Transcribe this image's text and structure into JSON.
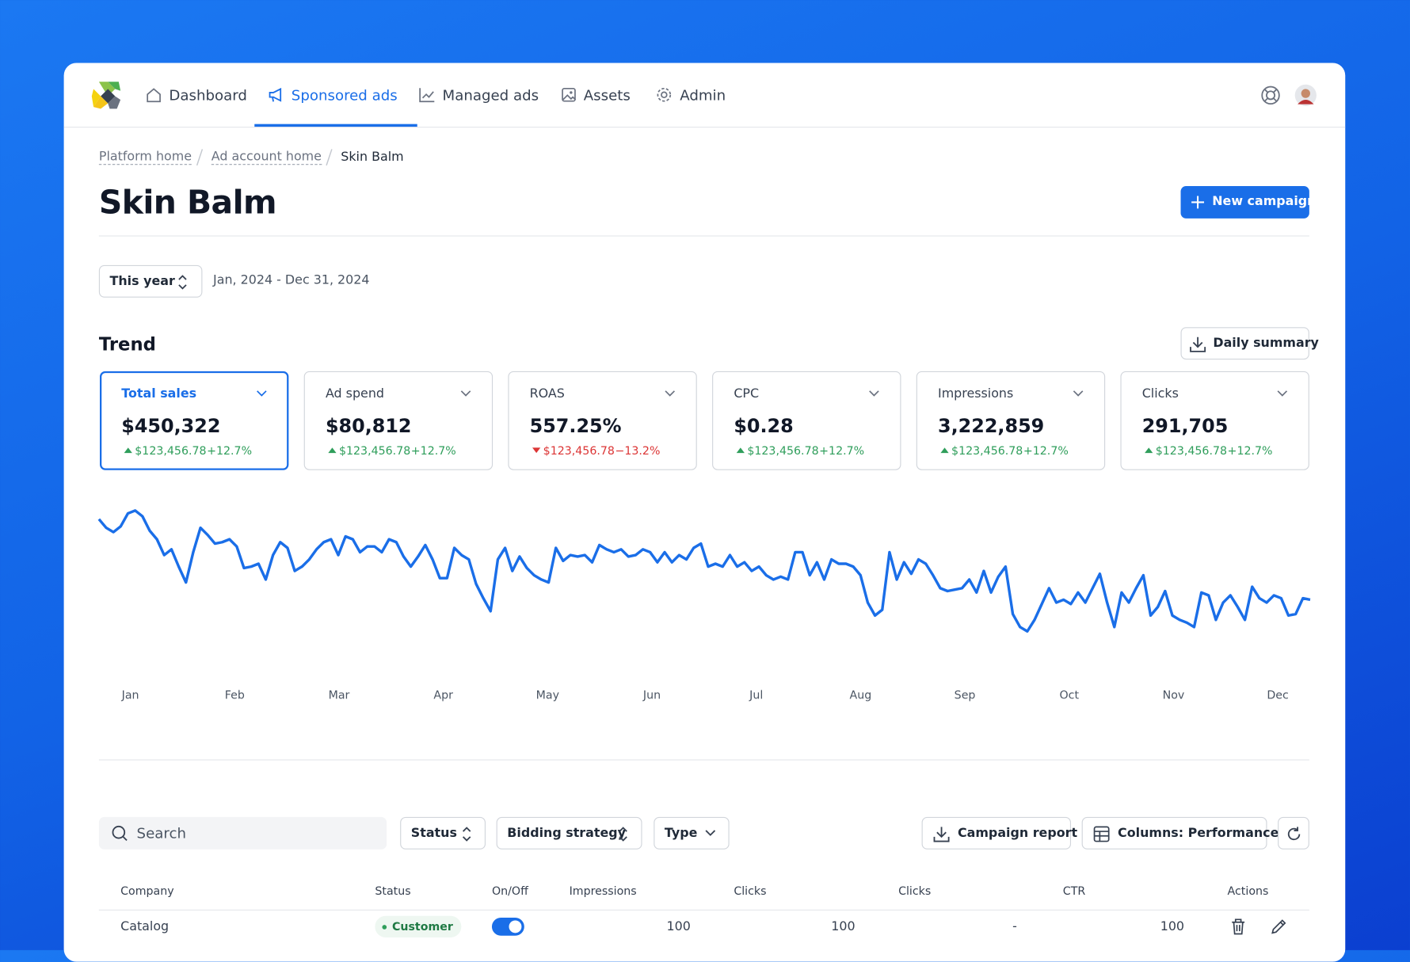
{
  "nav": {
    "items": [
      "Dashboard",
      "Sponsored ads",
      "Managed ads",
      "Assets",
      "Admin"
    ],
    "active": 1
  },
  "breadcrumb": [
    "Platform home",
    "Ad account home",
    "Skin Balm"
  ],
  "header": {
    "title": "Skin Balm",
    "button": "New campaign"
  },
  "date_filter": {
    "range": "This year",
    "dates": "Jan, 2024 - Dec 31, 2024"
  },
  "trend": {
    "title": "Trend",
    "button": "Daily summary",
    "metrics": [
      {
        "label": "Total sales",
        "value": "$450,322",
        "change": "$123,456.78",
        "percent": "+12.7%",
        "direction": "up"
      },
      {
        "label": "Ad spend",
        "value": "$80,812",
        "change": "$123,456.78",
        "percent": "+12.7%",
        "direction": "up"
      },
      {
        "label": "ROAS",
        "value": "557.25%",
        "change": "$123,456.78",
        "percent": "−13.2%",
        "direction": "down"
      },
      {
        "label": "CPC",
        "value": "$0.28",
        "change": "$123,456.78",
        "percent": "+12.7%",
        "direction": "up"
      },
      {
        "label": "Impressions",
        "value": "3,222,859",
        "change": "$123,456.78",
        "percent": "+12.7%",
        "direction": "up"
      },
      {
        "label": "Clicks",
        "value": "291,705",
        "change": "$123,456.78",
        "percent": "+12.7%",
        "direction": "up"
      }
    ],
    "selected": 0
  },
  "chart_data": {
    "type": "line",
    "color": "#1a6ee8",
    "ylim": [
      0,
      100
    ],
    "x_labels": [
      "Jan",
      "Feb",
      "Mar",
      "Apr",
      "May",
      "Jun",
      "Jul",
      "Aug",
      "Sep",
      "Oct",
      "Nov",
      "Dec"
    ],
    "values": [
      89,
      83,
      80,
      84,
      93,
      95,
      91,
      81,
      75,
      64,
      68,
      56,
      45,
      66,
      83,
      78,
      72,
      73,
      75,
      70,
      55,
      56,
      58,
      47,
      64,
      73,
      69,
      53,
      56,
      61,
      68,
      73,
      75,
      64,
      77,
      75,
      66,
      70,
      70,
      66,
      75,
      73,
      63,
      56,
      63,
      71,
      61,
      48,
      48,
      69,
      64,
      61,
      44,
      34,
      25,
      61,
      69,
      53,
      63,
      55,
      50,
      47,
      45,
      69,
      60,
      64,
      63,
      64,
      59,
      71,
      68,
      66,
      68,
      63,
      64,
      68,
      66,
      59,
      66,
      59,
      64,
      61,
      69,
      72,
      56,
      58,
      56,
      64,
      56,
      59,
      53,
      56,
      50,
      47,
      49,
      47,
      66,
      66,
      50,
      59,
      47,
      61,
      58,
      58,
      56,
      50,
      31,
      22,
      26,
      66,
      47,
      59,
      51,
      61,
      58,
      50,
      41,
      39,
      40,
      41,
      47,
      38,
      53,
      38,
      49,
      56,
      23,
      14,
      11,
      19,
      30,
      41,
      31,
      33,
      30,
      38,
      31,
      41,
      51,
      31,
      14,
      38,
      31,
      41,
      50,
      22,
      28,
      39,
      22,
      19,
      17,
      14,
      38,
      36,
      19,
      31,
      36,
      28,
      19,
      42,
      34,
      31,
      36,
      34,
      22,
      23,
      34,
      33
    ]
  },
  "toolbar": {
    "search": "Search",
    "filters": [
      "Status",
      "Bidding strategy",
      "Type"
    ],
    "buttons": [
      "Campaign report",
      "Columns: Performance"
    ]
  },
  "table": {
    "columns": [
      "Company",
      "Status",
      "On/Off",
      "Impressions",
      "Clicks",
      "Clicks",
      "CTR",
      "Actions"
    ],
    "rows": [
      {
        "company": "Catalog",
        "status": "Customer",
        "on": true,
        "cells": [
          100,
          100,
          "-",
          100
        ]
      }
    ]
  }
}
